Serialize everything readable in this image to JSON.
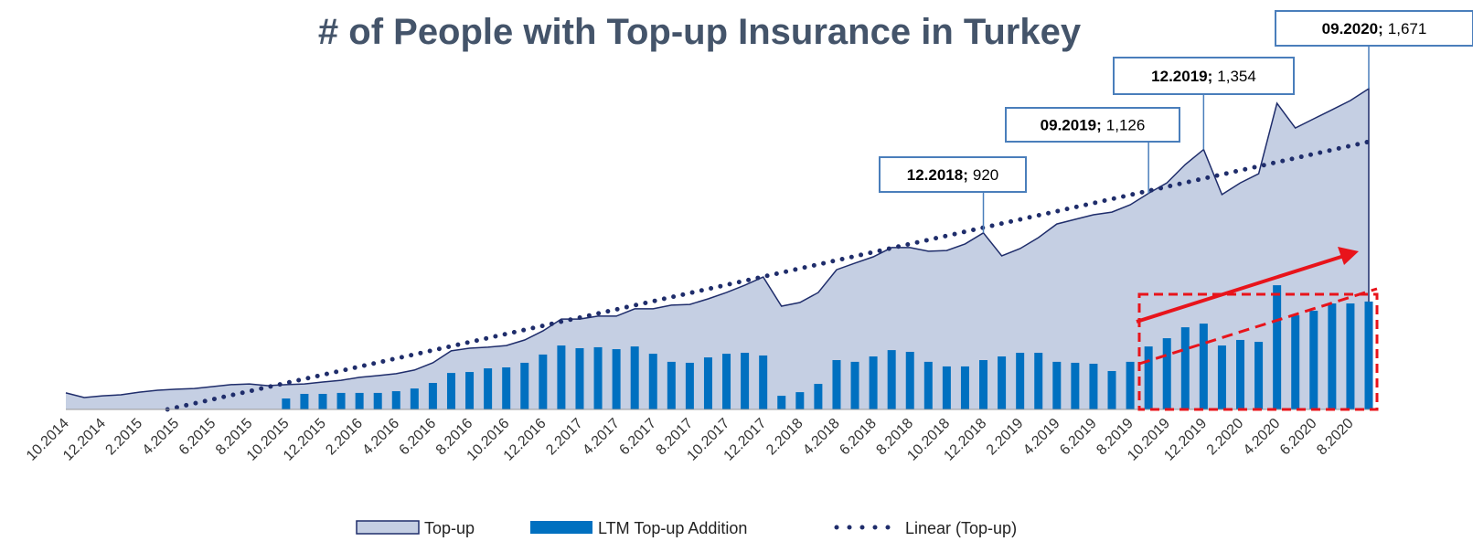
{
  "chart_data": {
    "type": "area_bar",
    "title": "# of People with Top-up  Insurance in Turkey",
    "categories": [
      "10.2014",
      null,
      "12.2014",
      null,
      "2.2015",
      null,
      "4.2015",
      null,
      "6.2015",
      null,
      "8.2015",
      null,
      "10.2015",
      null,
      "12.2015",
      null,
      "2.2016",
      null,
      "4.2016",
      null,
      "6.2016",
      null,
      "8.2016",
      null,
      "10.2016",
      null,
      "12.2016",
      null,
      "2.2017",
      null,
      "4.2017",
      null,
      "6.2017",
      null,
      "8.2017",
      null,
      "10.2017",
      null,
      "12.2017",
      null,
      "2.2018",
      null,
      "4.2018",
      null,
      "6.2018",
      null,
      "8.2018",
      null,
      "10.2018",
      null,
      "12.2018",
      null,
      "2.2019",
      null,
      "4.2019",
      null,
      "6.2019",
      null,
      "8.2019",
      null,
      "10.2019",
      null,
      "12.2019",
      null,
      "2.2020",
      null,
      "4.2020",
      null,
      "6.2020",
      null,
      "8.2020",
      null
    ],
    "series": [
      {
        "name": "Top-up",
        "kind": "area",
        "color": "#c5cfe3",
        "stroke": "#1f2d6b",
        "values": [
          86,
          62,
          71,
          76,
          90,
          100,
          105,
          109,
          119,
          129,
          133,
          124,
          129,
          133,
          143,
          152,
          167,
          176,
          186,
          205,
          243,
          305,
          319,
          324,
          333,
          362,
          409,
          471,
          471,
          486,
          486,
          524,
          524,
          543,
          547,
          576,
          609,
          647,
          690,
          538,
          557,
          609,
          728,
          762,
          795,
          843,
          843,
          824,
          828,
          862,
          920,
          800,
          838,
          895,
          966,
          990,
          1014,
          1028,
          1066,
          1126,
          1180,
          1276,
          1354,
          1119,
          1180,
          1228,
          1595,
          1466,
          1514,
          1561,
          1609,
          1671
        ],
        "point_labels": [
          null,
          null,
          null,
          null,
          null,
          null,
          null,
          null,
          null,
          null,
          null,
          null,
          null,
          null,
          null,
          null,
          null,
          null,
          null,
          null,
          null,
          null,
          null,
          null,
          null,
          null,
          null,
          null,
          null,
          null,
          null,
          null,
          null,
          null,
          null,
          null,
          null,
          null,
          null,
          null,
          null,
          null,
          null,
          null,
          null,
          null,
          null,
          null,
          null,
          null,
          "12.2018;",
          null,
          null,
          null,
          null,
          null,
          null,
          null,
          null,
          "09.2019;",
          null,
          null,
          "12.2019;",
          null,
          null,
          null,
          null,
          null,
          null,
          null,
          null,
          "09.2020;"
        ],
        "value_labels": [
          null,
          null,
          null,
          null,
          null,
          null,
          null,
          null,
          null,
          null,
          null,
          null,
          null,
          null,
          null,
          null,
          null,
          null,
          null,
          null,
          null,
          null,
          null,
          null,
          null,
          null,
          null,
          null,
          null,
          null,
          null,
          null,
          null,
          null,
          null,
          null,
          null,
          null,
          null,
          null,
          null,
          null,
          null,
          null,
          null,
          null,
          null,
          null,
          null,
          null,
          "920",
          null,
          null,
          null,
          null,
          null,
          null,
          null,
          null,
          "1,126",
          null,
          null,
          "1,354",
          null,
          null,
          null,
          null,
          null,
          null,
          null,
          null,
          "1,671"
        ]
      },
      {
        "name": "LTM Top-up Addition",
        "kind": "bar",
        "color": "#0070c0",
        "values": [
          null,
          null,
          null,
          null,
          null,
          null,
          null,
          null,
          null,
          null,
          null,
          null,
          57,
          81,
          81,
          86,
          86,
          86,
          95,
          109,
          138,
          190,
          195,
          214,
          219,
          243,
          286,
          333,
          319,
          324,
          314,
          328,
          290,
          248,
          243,
          271,
          290,
          295,
          281,
          71,
          90,
          133,
          257,
          248,
          276,
          309,
          300,
          248,
          224,
          224,
          257,
          276,
          295,
          295,
          248,
          243,
          238,
          200,
          248,
          328,
          371,
          428,
          447,
          333,
          362,
          352,
          647,
          490,
          514,
          552,
          552,
          562
        ]
      },
      {
        "name": "Linear (Top-up)",
        "kind": "trendline",
        "of": 0,
        "color": "#1f2d6b"
      }
    ]
  }
}
